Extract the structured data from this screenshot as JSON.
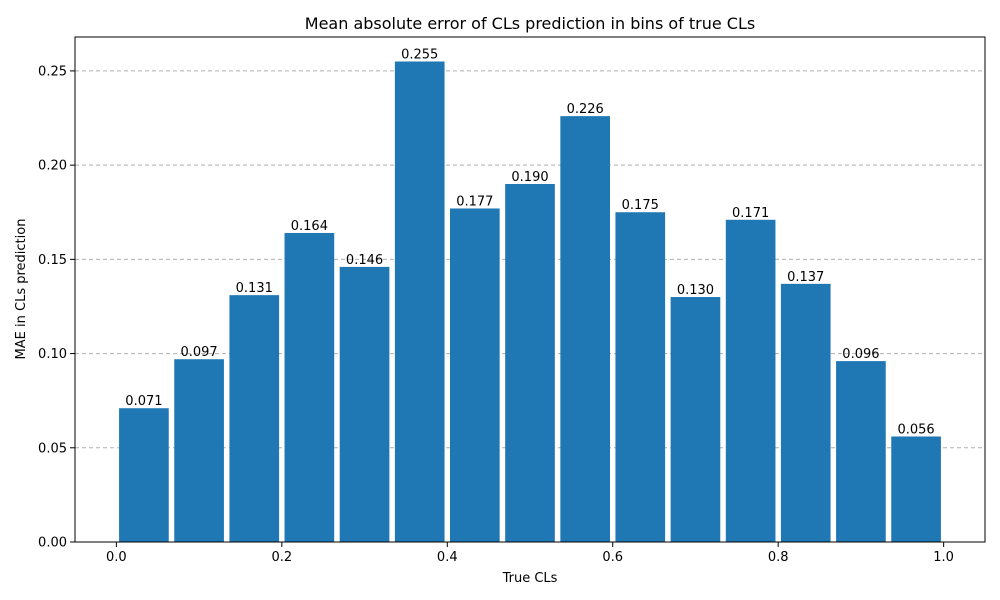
{
  "chart_data": {
    "type": "bar",
    "title": "Mean absolute error of CLs prediction in bins of true CLs",
    "xlabel": "True CLs",
    "ylabel": "MAE in CLs prediction",
    "bin_width": 0.0667,
    "bar_width_fraction": 0.9,
    "bin_centers": [
      0.0333,
      0.1,
      0.1667,
      0.2333,
      0.3,
      0.3667,
      0.4333,
      0.5,
      0.5667,
      0.6333,
      0.7,
      0.7667,
      0.8333,
      0.9,
      0.9667
    ],
    "values": [
      0.071,
      0.097,
      0.131,
      0.164,
      0.146,
      0.255,
      0.177,
      0.19,
      0.226,
      0.175,
      0.13,
      0.171,
      0.137,
      0.096,
      0.056
    ],
    "value_labels": [
      "0.071",
      "0.097",
      "0.131",
      "0.164",
      "0.146",
      "0.255",
      "0.177",
      "0.190",
      "0.226",
      "0.175",
      "0.130",
      "0.171",
      "0.137",
      "0.096",
      "0.056"
    ],
    "xlim": [
      -0.05,
      1.05
    ],
    "ylim": [
      0,
      0.268
    ],
    "xticks": [
      0.0,
      0.2,
      0.4,
      0.6,
      0.8,
      1.0
    ],
    "xtick_labels": [
      "0.0",
      "0.2",
      "0.4",
      "0.6",
      "0.8",
      "1.0"
    ],
    "yticks": [
      0.0,
      0.05,
      0.1,
      0.15,
      0.2,
      0.25
    ],
    "ytick_labels": [
      "0.00",
      "0.05",
      "0.10",
      "0.15",
      "0.20",
      "0.25"
    ],
    "grid": "y-dashed",
    "bar_color": "#1f77b4"
  }
}
